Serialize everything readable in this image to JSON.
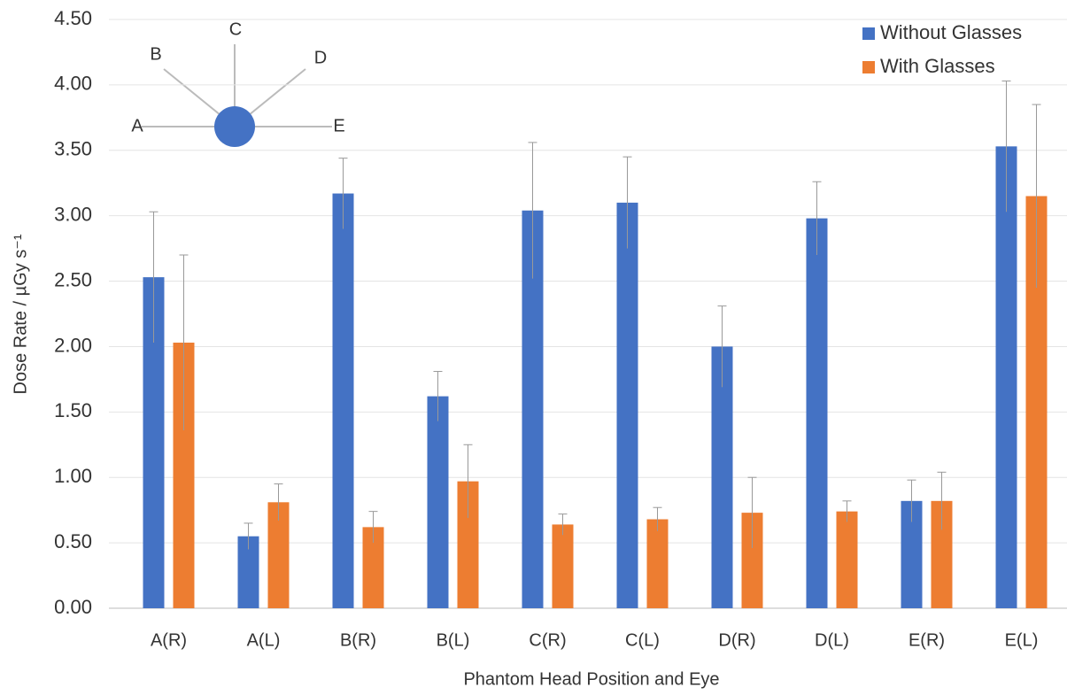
{
  "chart_data": {
    "type": "bar",
    "y_label": "Dose Rate / µGy s⁻¹",
    "x_label": "Phantom Head Position and Eye",
    "categories": [
      "A(R)",
      "A(L)",
      "B(R)",
      "B(L)",
      "C(R)",
      "C(L)",
      "D(R)",
      "D(L)",
      "E(R)",
      "E(L)"
    ],
    "series": [
      {
        "name": "Without Glasses",
        "color": "#4472c4",
        "values": [
          2.53,
          0.55,
          3.17,
          1.62,
          3.04,
          3.1,
          2.0,
          2.98,
          0.82,
          3.53
        ],
        "errors": [
          0.5,
          0.1,
          0.27,
          0.19,
          0.52,
          0.35,
          0.31,
          0.28,
          0.16,
          0.5
        ]
      },
      {
        "name": "With Glasses",
        "color": "#ed7d31",
        "values": [
          2.03,
          0.81,
          0.62,
          0.97,
          0.64,
          0.68,
          0.73,
          0.74,
          0.82,
          3.15
        ],
        "errors": [
          0.67,
          0.14,
          0.12,
          0.28,
          0.08,
          0.09,
          0.27,
          0.08,
          0.22,
          0.7
        ]
      }
    ],
    "ylim": [
      0,
      4.5
    ],
    "yticks": [
      {
        "value": 0,
        "label": "0.00"
      },
      {
        "value": 0.5,
        "label": "0.50"
      },
      {
        "value": 1,
        "label": "1.00"
      },
      {
        "value": 1.5,
        "label": "1.50"
      },
      {
        "value": 2,
        "label": "2.00"
      },
      {
        "value": 2.5,
        "label": "2.50"
      },
      {
        "value": 3,
        "label": "3.00"
      },
      {
        "value": 3.5,
        "label": "3.50"
      },
      {
        "value": 4,
        "label": "4.00"
      },
      {
        "value": 4.5,
        "label": "4.50"
      }
    ],
    "grid": true,
    "legend": "top-right",
    "inset_labels": [
      "A",
      "B",
      "C",
      "D",
      "E"
    ]
  }
}
